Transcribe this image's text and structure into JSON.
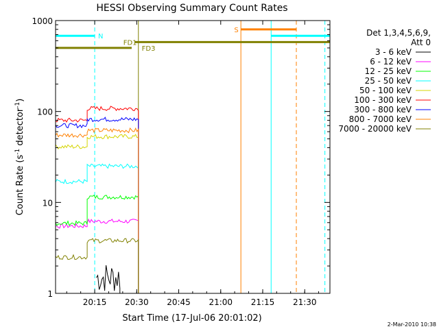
{
  "chart_data": {
    "type": "line",
    "title": "HESSI Observing Summary Count Rates",
    "xlabel": "Start Time (17-Jul-06 20:01:02)",
    "ylabel_main": "Count Rate (s",
    "ylabel_sup1": "-1",
    "ylabel_mid": " detector",
    "ylabel_sup2": "-1",
    "ylabel_end": ")",
    "yscale": "log",
    "ylim": [
      1,
      1000
    ],
    "xlim_minutes": [
      20.017,
      21.65
    ],
    "x_ticks": [
      {
        "t": 20.25,
        "label": "20:15"
      },
      {
        "t": 20.5,
        "label": "20:30"
      },
      {
        "t": 20.75,
        "label": "20:45"
      },
      {
        "t": 21.0,
        "label": "21:00"
      },
      {
        "t": 21.25,
        "label": "21:15"
      },
      {
        "t": 21.5,
        "label": "21:30"
      }
    ],
    "y_ticks": [
      {
        "v": 1,
        "label": "1"
      },
      {
        "v": 10,
        "label": "10"
      },
      {
        "v": 100,
        "label": "100"
      },
      {
        "v": 1000,
        "label": "1000"
      }
    ],
    "legend_header": [
      "Det 1,3,4,5,6,9,",
      "Att 0"
    ],
    "legend_placement": "right",
    "series": [
      {
        "name": "3 - 6 keV",
        "color": "#000000",
        "segments": [
          {
            "t0": 20.017,
            "t1": 20.195,
            "v": null
          },
          {
            "t0": 20.26,
            "t1": 20.4,
            "v": 1.5,
            "noisy": true
          }
        ]
      },
      {
        "name": "6 - 12 keV",
        "color": "#ff00ff",
        "segments": [
          {
            "t0": 20.017,
            "t1": 20.205,
            "v": 5.5
          },
          {
            "t0": 20.205,
            "t1": 20.51,
            "v": 6.2
          }
        ]
      },
      {
        "name": "12 - 25 keV",
        "color": "#00ff00",
        "segments": [
          {
            "t0": 20.017,
            "t1": 20.205,
            "v": 5.9
          },
          {
            "t0": 20.205,
            "t1": 20.51,
            "v": 11.5
          }
        ]
      },
      {
        "name": "25 - 50 keV",
        "color": "#00ffff",
        "segments": [
          {
            "t0": 20.017,
            "t1": 20.205,
            "v": 17
          },
          {
            "t0": 20.205,
            "t1": 20.51,
            "v": 25
          }
        ]
      },
      {
        "name": "50 - 100 keV",
        "color": "#d4d400",
        "segments": [
          {
            "t0": 20.017,
            "t1": 20.205,
            "v": 41
          },
          {
            "t0": 20.205,
            "t1": 20.51,
            "v": 53
          }
        ]
      },
      {
        "name": "100 - 300 keV",
        "color": "#ff0000",
        "segments": [
          {
            "t0": 20.017,
            "t1": 20.205,
            "v": 80
          },
          {
            "t0": 20.205,
            "t1": 20.51,
            "v": 108
          }
        ]
      },
      {
        "name": "300 - 800 keV",
        "color": "#0000ff",
        "segments": [
          {
            "t0": 20.017,
            "t1": 20.205,
            "v": 70
          },
          {
            "t0": 20.205,
            "t1": 20.51,
            "v": 82
          }
        ]
      },
      {
        "name": "800 - 7000 keV",
        "color": "#ff8000",
        "segments": [
          {
            "t0": 20.017,
            "t1": 20.205,
            "v": 55
          },
          {
            "t0": 20.205,
            "t1": 20.51,
            "v": 62
          }
        ]
      },
      {
        "name": "7000 - 20000 keV",
        "color": "#808000",
        "segments": [
          {
            "t0": 20.017,
            "t1": 20.205,
            "v": 2.5
          },
          {
            "t0": 20.205,
            "t1": 20.51,
            "v": 3.8
          }
        ]
      }
    ],
    "flags": [
      {
        "label": "N",
        "color": "#00ffff",
        "v": 680,
        "t0": 20.017,
        "t1": 20.25,
        "label_t": 20.27
      },
      {
        "label": "N",
        "color": "#00ffff",
        "v": 680,
        "t0": 21.3,
        "t1": 21.65,
        "label_t": null
      },
      {
        "label": "FD1",
        "color": "#808000",
        "v": 580,
        "t0": 20.49,
        "t1": 21.65,
        "label_t": 20.42
      },
      {
        "label": "FD3",
        "color": "#808000",
        "v": 500,
        "t0": 20.017,
        "t1": 20.47,
        "label_t": 20.53
      },
      {
        "label": "S",
        "color": "#ff8000",
        "v": 800,
        "t0": 21.12,
        "t1": 21.45,
        "label_t": 21.08
      }
    ],
    "vlines": [
      {
        "t": 20.017,
        "color": "#00ffff",
        "style": "solid"
      },
      {
        "t": 20.25,
        "color": "#00ffff",
        "style": "dashed"
      },
      {
        "t": 20.51,
        "color": "#808000",
        "style": "solid"
      },
      {
        "t": 21.12,
        "color": "#ff8000",
        "style": "solid"
      },
      {
        "t": 21.3,
        "color": "#00ffff",
        "style": "solid"
      },
      {
        "t": 21.45,
        "color": "#ff8000",
        "style": "dashed"
      },
      {
        "t": 21.62,
        "color": "#00ffff",
        "style": "dashed"
      }
    ],
    "timestamp": "2-Mar-2010 10:38"
  }
}
